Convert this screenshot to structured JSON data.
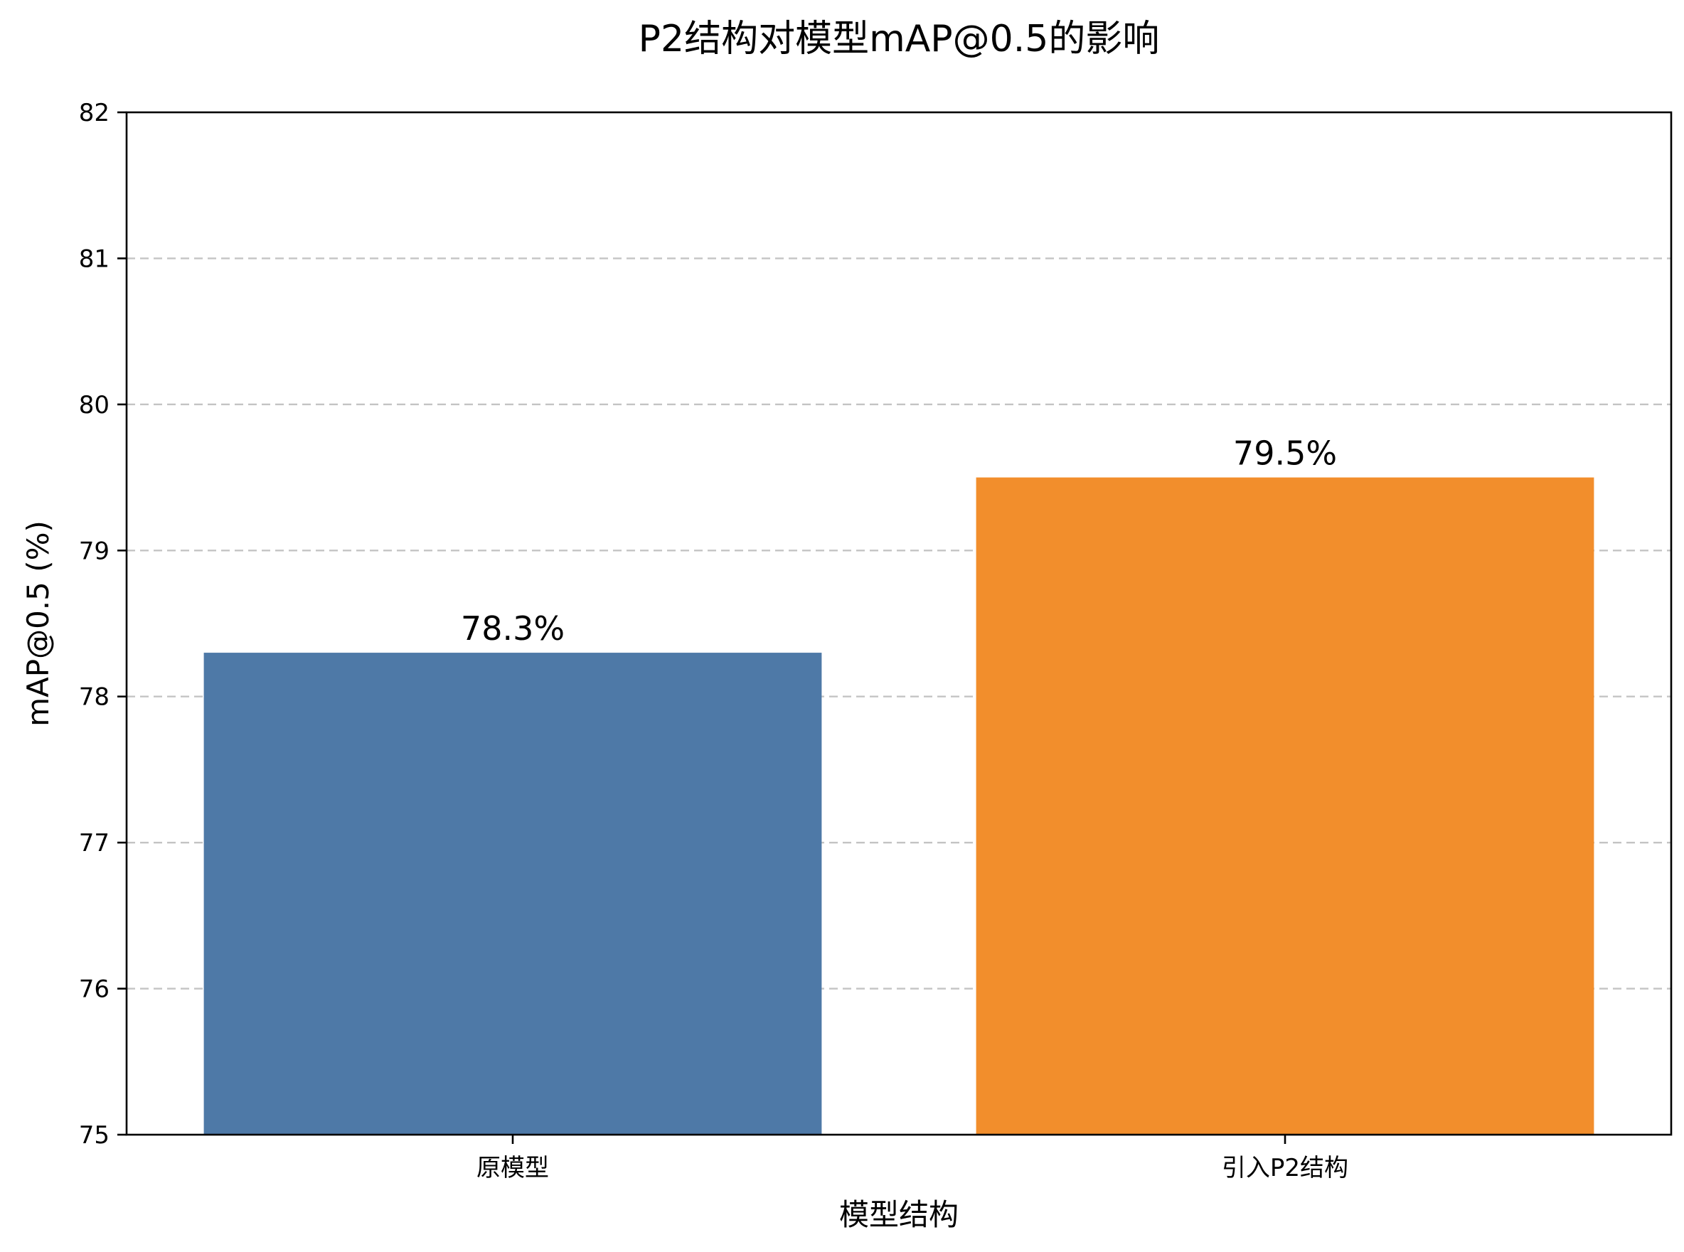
{
  "chart_data": {
    "type": "bar",
    "title": "P2结构对模型mAP@0.5的影响",
    "xlabel": "模型结构",
    "ylabel": "mAP@0.5 (%)",
    "categories": [
      "原模型",
      "引入P2结构"
    ],
    "values": [
      78.3,
      79.5
    ],
    "data_labels": [
      "78.3%",
      "79.5%"
    ],
    "bar_colors": [
      "#4e79a7",
      "#f28e2c"
    ],
    "ylim": [
      75,
      82
    ],
    "yticks": [
      75,
      76,
      77,
      78,
      79,
      80,
      81,
      82
    ],
    "grid": true,
    "grid_axis": "y",
    "grid_style": "dashed",
    "legend": false
  }
}
